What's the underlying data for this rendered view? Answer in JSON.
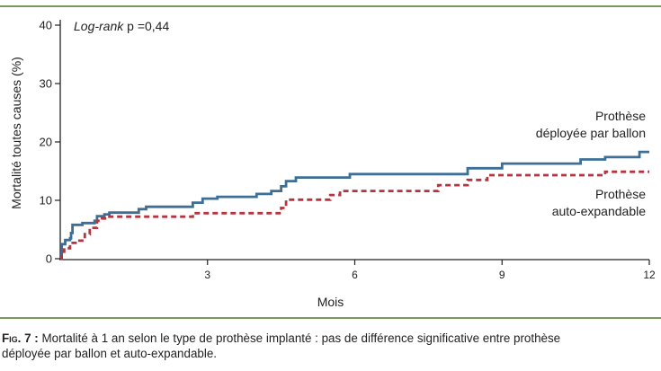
{
  "chart_data": {
    "type": "line",
    "annotation": {
      "prefix": "Log-rank",
      "text": " p =0,44"
    },
    "xlabel": "Mois",
    "ylabel": "Mortalité toutes causes (%)",
    "xlim": [
      0,
      12
    ],
    "ylim": [
      0,
      40
    ],
    "xticks": [
      3,
      6,
      9,
      12
    ],
    "yticks": [
      0,
      10,
      20,
      30,
      40
    ],
    "grid": false,
    "series": [
      {
        "name_lines": [
          "Prothèse",
          "déployée par ballon"
        ],
        "color": "#3d6f96",
        "style": "solid",
        "step": true,
        "points": [
          [
            0,
            0
          ],
          [
            0.03,
            2.5
          ],
          [
            0.1,
            3.2
          ],
          [
            0.2,
            3.5
          ],
          [
            0.22,
            4.4
          ],
          [
            0.25,
            5.8
          ],
          [
            0.45,
            6.1
          ],
          [
            0.7,
            6.5
          ],
          [
            0.75,
            7.3
          ],
          [
            0.9,
            7.6
          ],
          [
            1.0,
            7.9
          ],
          [
            1.5,
            7.9
          ],
          [
            1.6,
            8.5
          ],
          [
            1.75,
            8.9
          ],
          [
            2.6,
            8.9
          ],
          [
            2.7,
            9.6
          ],
          [
            2.9,
            10.3
          ],
          [
            3.2,
            10.6
          ],
          [
            4.0,
            11.1
          ],
          [
            4.3,
            11.6
          ],
          [
            4.5,
            12.4
          ],
          [
            4.6,
            13.3
          ],
          [
            4.8,
            13.9
          ],
          [
            5.8,
            13.9
          ],
          [
            5.9,
            14.5
          ],
          [
            8.2,
            14.5
          ],
          [
            8.3,
            15.5
          ],
          [
            9.0,
            16.3
          ],
          [
            10.5,
            16.3
          ],
          [
            10.6,
            17.0
          ],
          [
            11.1,
            17.4
          ],
          [
            11.75,
            17.4
          ],
          [
            11.8,
            18.3
          ],
          [
            12.0,
            18.3
          ]
        ]
      },
      {
        "name_lines": [
          "Prothèse",
          "auto-expandable"
        ],
        "color": "#b5343f",
        "style": "dashed",
        "step": true,
        "points": [
          [
            0,
            0
          ],
          [
            0.03,
            1.2
          ],
          [
            0.08,
            1.8
          ],
          [
            0.2,
            2.7
          ],
          [
            0.35,
            3.1
          ],
          [
            0.5,
            4.2
          ],
          [
            0.6,
            5.3
          ],
          [
            0.75,
            6.5
          ],
          [
            0.85,
            6.9
          ],
          [
            1.0,
            7.2
          ],
          [
            2.6,
            7.2
          ],
          [
            2.7,
            7.8
          ],
          [
            4.4,
            7.8
          ],
          [
            4.5,
            8.7
          ],
          [
            4.6,
            10.1
          ],
          [
            5.3,
            10.1
          ],
          [
            5.5,
            10.9
          ],
          [
            5.7,
            11.6
          ],
          [
            7.6,
            11.6
          ],
          [
            7.7,
            12.6
          ],
          [
            8.2,
            12.6
          ],
          [
            8.3,
            13.5
          ],
          [
            8.7,
            14.3
          ],
          [
            11.0,
            14.3
          ],
          [
            11.1,
            14.9
          ],
          [
            12.0,
            14.9
          ]
        ]
      }
    ]
  },
  "caption": {
    "label": "Fig. 7 :",
    "line1": " Mortalité à 1 an selon le type de prothèse implanté : pas de différence significative entre prothèse",
    "line2": "déployée par ballon et auto-expandable."
  },
  "colors": {
    "frame": "#7a9a5a",
    "axis": "#222222"
  }
}
